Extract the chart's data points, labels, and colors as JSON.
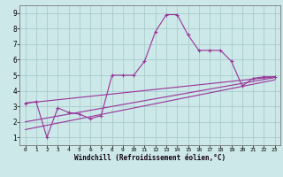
{
  "xlabel": "Windchill (Refroidissement éolien,°C)",
  "background_color": "#cce8e8",
  "grid_color": "#aacccc",
  "line_color": "#993399",
  "xlim": [
    -0.5,
    23.5
  ],
  "ylim": [
    0.5,
    9.5
  ],
  "xticks": [
    0,
    1,
    2,
    3,
    4,
    5,
    6,
    7,
    8,
    9,
    10,
    11,
    12,
    13,
    14,
    15,
    16,
    17,
    18,
    19,
    20,
    21,
    22,
    23
  ],
  "yticks": [
    1,
    2,
    3,
    4,
    5,
    6,
    7,
    8,
    9
  ],
  "series": [
    {
      "x": [
        0,
        1,
        2,
        3,
        4,
        5,
        6,
        7,
        8,
        9,
        10,
        11,
        12,
        13,
        14,
        15,
        16,
        17,
        18,
        19,
        20,
        21,
        22,
        23
      ],
      "y": [
        3.2,
        3.3,
        1.0,
        2.9,
        2.6,
        2.5,
        2.2,
        2.4,
        5.0,
        5.0,
        5.0,
        5.9,
        7.8,
        8.9,
        8.9,
        7.6,
        6.6,
        6.6,
        6.6,
        5.9,
        4.3,
        4.8,
        4.9,
        4.9
      ],
      "marker": true
    },
    {
      "x": [
        0,
        23
      ],
      "y": [
        3.2,
        4.9
      ],
      "marker": false
    },
    {
      "x": [
        0,
        23
      ],
      "y": [
        2.0,
        4.85
      ],
      "marker": false
    },
    {
      "x": [
        0,
        23
      ],
      "y": [
        1.5,
        4.7
      ],
      "marker": false
    }
  ]
}
